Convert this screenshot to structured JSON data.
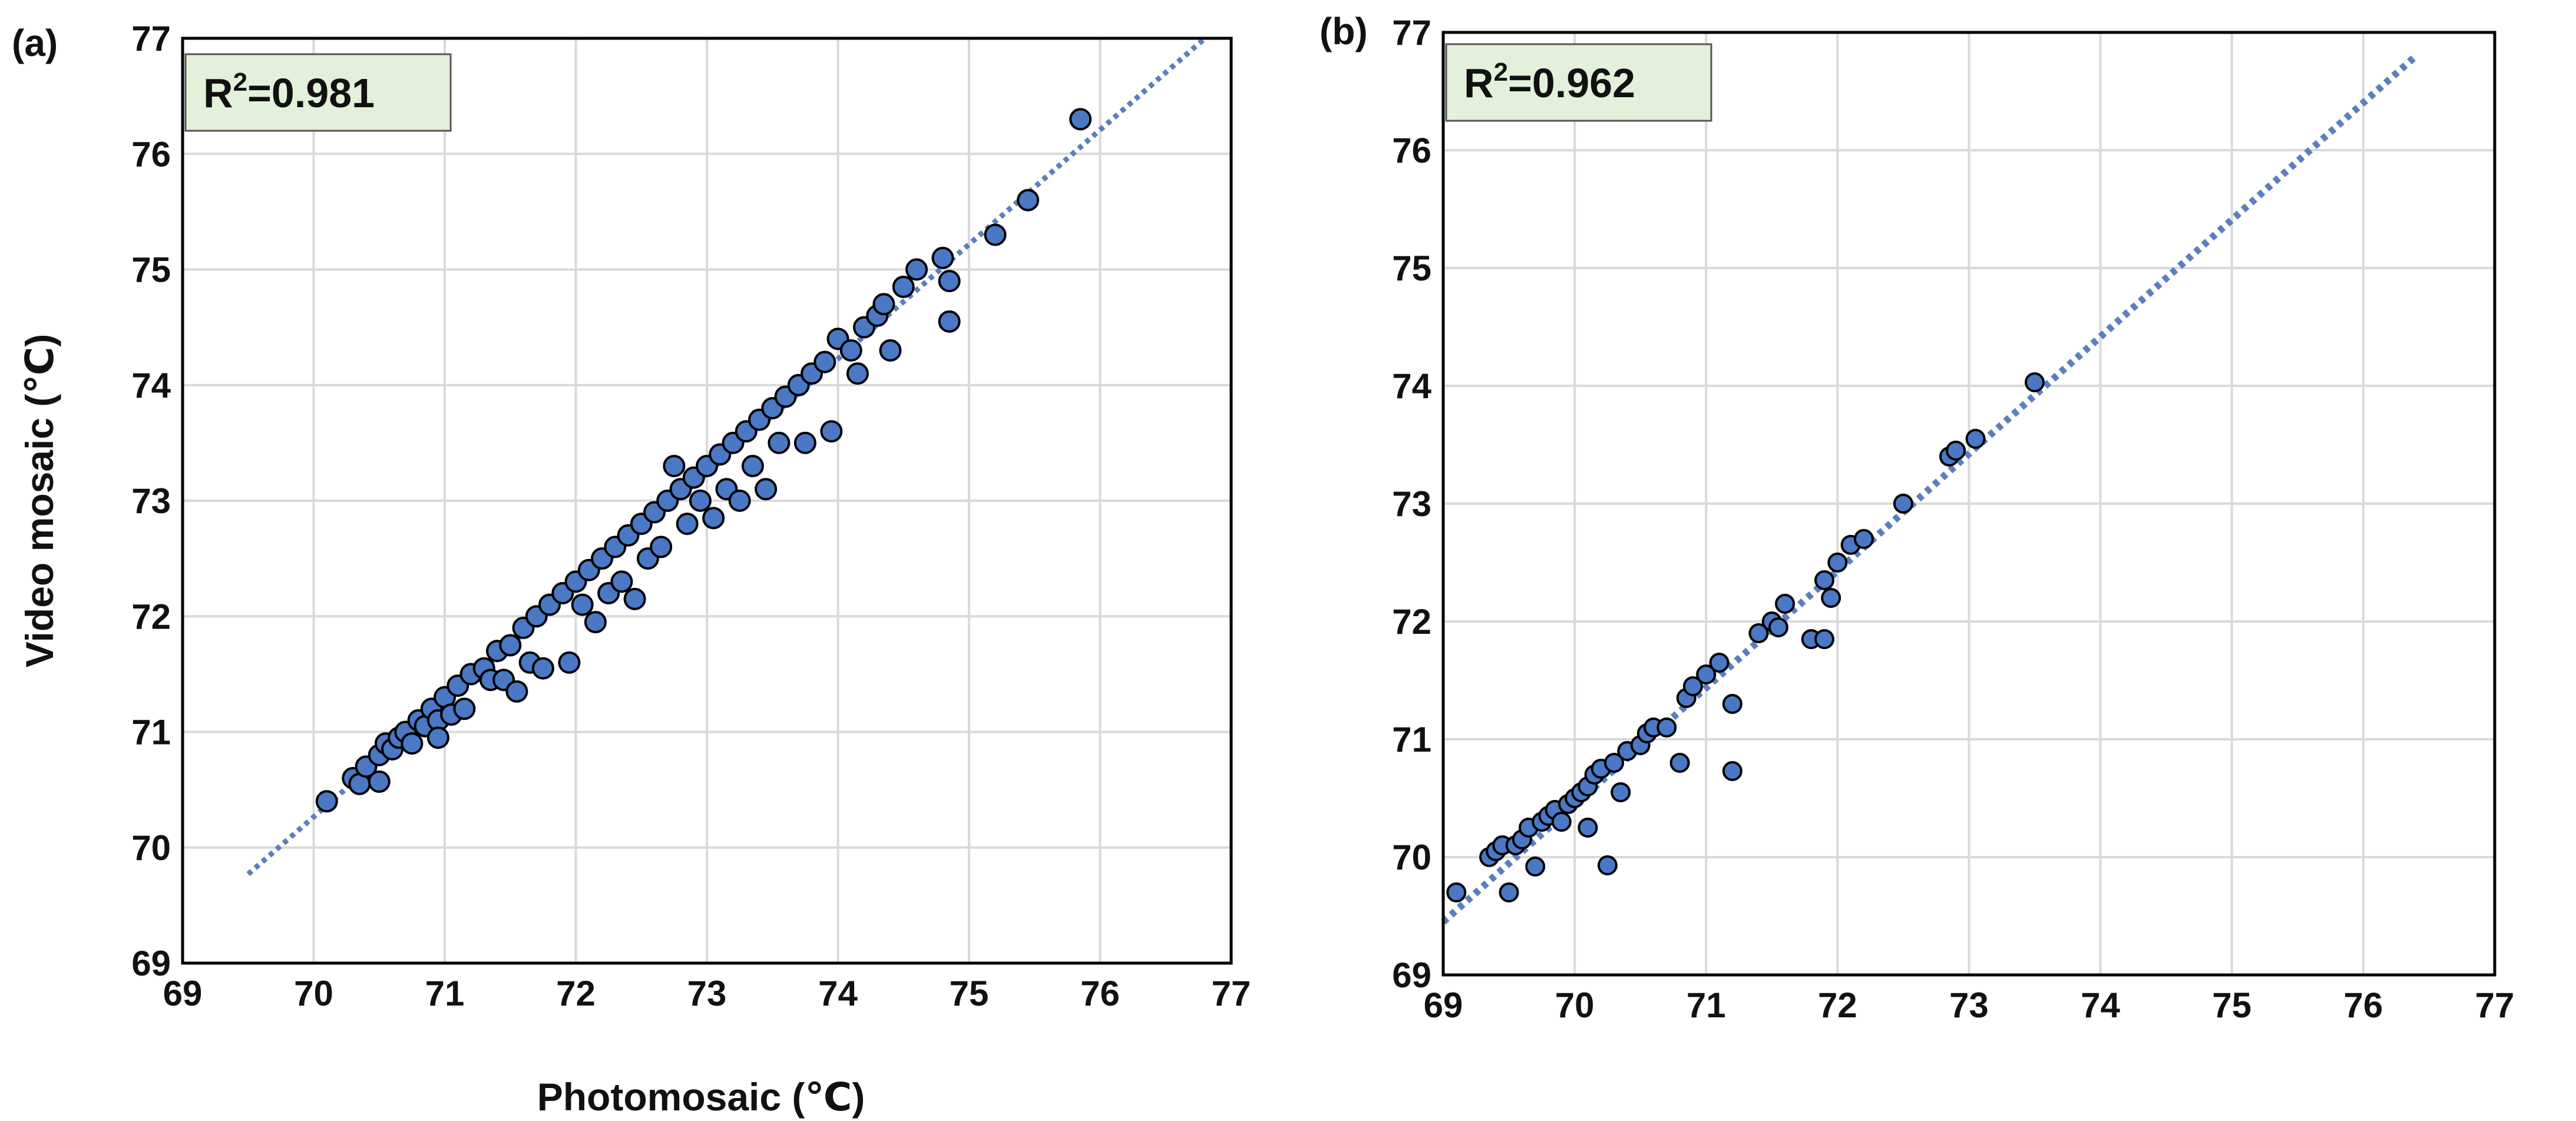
{
  "chart_data": [
    {
      "type": "scatter",
      "panel_label": "(a)",
      "annotation": "R²=0.981",
      "annotation_parts": {
        "base": "R",
        "sup": "2",
        "rest": "=0.981"
      },
      "xlabel": "Photomosaic (℃)",
      "ylabel": "Video mosaic (℃)",
      "xlim": [
        69,
        77
      ],
      "ylim": [
        69,
        77
      ],
      "xticks": [
        "69",
        "70",
        "71",
        "72",
        "73",
        "74",
        "75",
        "76",
        "77"
      ],
      "yticks": [
        "69",
        "70",
        "71",
        "72",
        "73",
        "74",
        "75",
        "76",
        "77"
      ],
      "grid": true,
      "trendline": {
        "style": "dotted",
        "x": [
          69.5,
          76.8
        ],
        "y": [
          69.77,
          77.0
        ]
      },
      "series": [
        {
          "name": "points",
          "points": [
            [
              70.1,
              70.4
            ],
            [
              70.3,
              70.6
            ],
            [
              70.35,
              70.55
            ],
            [
              70.4,
              70.7
            ],
            [
              70.5,
              70.8
            ],
            [
              70.5,
              70.57
            ],
            [
              70.55,
              70.9
            ],
            [
              70.6,
              70.85
            ],
            [
              70.65,
              70.95
            ],
            [
              70.7,
              71.0
            ],
            [
              70.75,
              70.9
            ],
            [
              70.8,
              71.1
            ],
            [
              70.85,
              71.05
            ],
            [
              70.9,
              71.2
            ],
            [
              70.95,
              71.1
            ],
            [
              71.0,
              71.3
            ],
            [
              70.95,
              70.95
            ],
            [
              71.05,
              71.15
            ],
            [
              71.1,
              71.4
            ],
            [
              71.15,
              71.2
            ],
            [
              71.2,
              71.5
            ],
            [
              71.3,
              71.55
            ],
            [
              71.35,
              71.45
            ],
            [
              71.4,
              71.7
            ],
            [
              71.5,
              71.75
            ],
            [
              71.45,
              71.45
            ],
            [
              71.55,
              71.35
            ],
            [
              71.6,
              71.9
            ],
            [
              71.65,
              71.6
            ],
            [
              71.7,
              72.0
            ],
            [
              71.8,
              72.1
            ],
            [
              71.75,
              71.55
            ],
            [
              71.9,
              72.2
            ],
            [
              71.95,
              71.6
            ],
            [
              72.0,
              72.3
            ],
            [
              72.05,
              72.1
            ],
            [
              72.1,
              72.4
            ],
            [
              72.15,
              71.95
            ],
            [
              72.2,
              72.5
            ],
            [
              72.25,
              72.2
            ],
            [
              72.3,
              72.6
            ],
            [
              72.35,
              72.3
            ],
            [
              72.4,
              72.7
            ],
            [
              72.45,
              72.15
            ],
            [
              72.5,
              72.8
            ],
            [
              72.55,
              72.5
            ],
            [
              72.6,
              72.9
            ],
            [
              72.65,
              72.6
            ],
            [
              72.7,
              73.0
            ],
            [
              72.75,
              73.3
            ],
            [
              72.8,
              73.1
            ],
            [
              72.85,
              72.8
            ],
            [
              72.9,
              73.2
            ],
            [
              72.95,
              73.0
            ],
            [
              73.0,
              73.3
            ],
            [
              73.05,
              72.85
            ],
            [
              73.1,
              73.4
            ],
            [
              73.15,
              73.1
            ],
            [
              73.2,
              73.5
            ],
            [
              73.25,
              73.0
            ],
            [
              73.3,
              73.6
            ],
            [
              73.35,
              73.3
            ],
            [
              73.4,
              73.7
            ],
            [
              73.45,
              73.1
            ],
            [
              73.5,
              73.8
            ],
            [
              73.55,
              73.5
            ],
            [
              73.6,
              73.9
            ],
            [
              73.7,
              74.0
            ],
            [
              73.75,
              73.5
            ],
            [
              73.8,
              74.1
            ],
            [
              73.9,
              74.2
            ],
            [
              73.95,
              73.6
            ],
            [
              74.0,
              74.4
            ],
            [
              74.1,
              74.3
            ],
            [
              74.15,
              74.1
            ],
            [
              74.2,
              74.5
            ],
            [
              74.3,
              74.6
            ],
            [
              74.35,
              74.7
            ],
            [
              74.4,
              74.3
            ],
            [
              74.5,
              74.85
            ],
            [
              74.6,
              75.0
            ],
            [
              74.8,
              75.1
            ],
            [
              74.85,
              74.9
            ],
            [
              74.85,
              74.55
            ],
            [
              75.2,
              75.3
            ],
            [
              75.45,
              75.6
            ],
            [
              75.85,
              76.3
            ]
          ]
        }
      ]
    },
    {
      "type": "scatter",
      "panel_label": "(b)",
      "annotation": "R²=0.962",
      "annotation_parts": {
        "base": "R",
        "sup": "2",
        "rest": "=0.962"
      },
      "xlabel": "",
      "ylabel": "",
      "xlim": [
        69,
        77
      ],
      "ylim": [
        69,
        77
      ],
      "xticks": [
        "69",
        "70",
        "71",
        "72",
        "73",
        "74",
        "75",
        "76",
        "77"
      ],
      "yticks": [
        "69",
        "70",
        "71",
        "72",
        "73",
        "74",
        "75",
        "76",
        "77"
      ],
      "grid": true,
      "trendline": {
        "style": "dotted",
        "x": [
          69.0,
          76.4
        ],
        "y": [
          69.45,
          76.8
        ]
      },
      "series": [
        {
          "name": "points",
          "points": [
            [
              69.1,
              69.7
            ],
            [
              69.35,
              70.0
            ],
            [
              69.4,
              70.05
            ],
            [
              69.45,
              70.1
            ],
            [
              69.5,
              69.7
            ],
            [
              69.55,
              70.1
            ],
            [
              69.6,
              70.15
            ],
            [
              69.65,
              70.25
            ],
            [
              69.7,
              69.92
            ],
            [
              69.75,
              70.3
            ],
            [
              69.8,
              70.35
            ],
            [
              69.85,
              70.4
            ],
            [
              69.9,
              70.3
            ],
            [
              69.95,
              70.45
            ],
            [
              70.0,
              70.5
            ],
            [
              70.05,
              70.55
            ],
            [
              70.1,
              70.6
            ],
            [
              70.1,
              70.25
            ],
            [
              70.15,
              70.7
            ],
            [
              70.2,
              70.75
            ],
            [
              70.25,
              69.93
            ],
            [
              70.3,
              70.8
            ],
            [
              70.35,
              70.55
            ],
            [
              70.4,
              70.9
            ],
            [
              70.5,
              70.95
            ],
            [
              70.55,
              71.05
            ],
            [
              70.6,
              71.1
            ],
            [
              70.7,
              71.1
            ],
            [
              70.8,
              70.8
            ],
            [
              70.85,
              71.35
            ],
            [
              70.9,
              71.45
            ],
            [
              71.0,
              71.55
            ],
            [
              71.1,
              71.65
            ],
            [
              71.2,
              71.3
            ],
            [
              71.2,
              70.73
            ],
            [
              71.4,
              71.9
            ],
            [
              71.5,
              72.0
            ],
            [
              71.55,
              71.95
            ],
            [
              71.6,
              72.15
            ],
            [
              71.8,
              71.85
            ],
            [
              71.9,
              72.35
            ],
            [
              71.9,
              71.85
            ],
            [
              71.95,
              72.2
            ],
            [
              72.0,
              72.5
            ],
            [
              72.1,
              72.65
            ],
            [
              72.2,
              72.7
            ],
            [
              72.5,
              73.0
            ],
            [
              72.85,
              73.4
            ],
            [
              72.9,
              73.45
            ],
            [
              73.05,
              73.55
            ],
            [
              73.5,
              74.03
            ]
          ]
        }
      ]
    }
  ]
}
